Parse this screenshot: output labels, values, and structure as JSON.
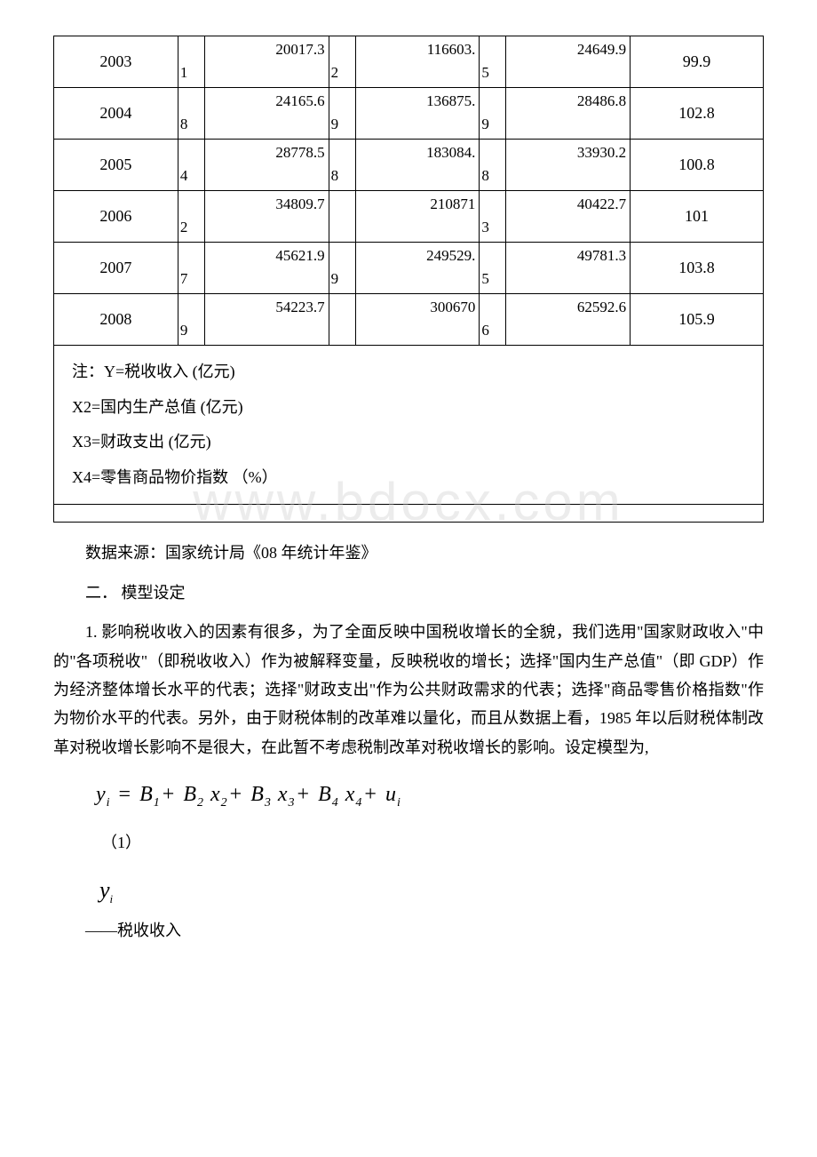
{
  "table": {
    "rows": [
      {
        "year": "2003",
        "y_int": "20017.3",
        "y_frac": "1",
        "x2_int": "116603.",
        "x2_frac": "2",
        "x3_int": "24649.9",
        "x3_frac": "5",
        "x4": "99.9"
      },
      {
        "year": "2004",
        "y_int": "24165.6",
        "y_frac": "8",
        "x2_int": "136875.",
        "x2_frac": "9",
        "x3_int": "28486.8",
        "x3_frac": "9",
        "x4": "102.8"
      },
      {
        "year": "2005",
        "y_int": "28778.5",
        "y_frac": "4",
        "x2_int": "183084.",
        "x2_frac": "8",
        "x3_int": "33930.2",
        "x3_frac": "8",
        "x4": "100.8"
      },
      {
        "year": "2006",
        "y_int": "34809.7",
        "y_frac": "2",
        "x2_int": "210871",
        "x2_frac": "",
        "x3_int": "40422.7",
        "x3_frac": "3",
        "x4": "101"
      },
      {
        "year": "2007",
        "y_int": "45621.9",
        "y_frac": "7",
        "x2_int": "249529.",
        "x2_frac": "9",
        "x3_int": "49781.3",
        "x3_frac": "5",
        "x4": "103.8"
      },
      {
        "year": "2008",
        "y_int": "54223.7",
        "y_frac": "9",
        "x2_int": "300670",
        "x2_frac": "",
        "x3_int": "62592.6",
        "x3_frac": "6",
        "x4": "105.9"
      }
    ],
    "notes": {
      "line1": "注：Y=税收收入 (亿元)",
      "line2": "X2=国内生产总值 (亿元)",
      "line3": "X3=财政支出 (亿元)",
      "line4": "X4=零售商品物价指数 （%）"
    }
  },
  "watermark": "www.bdocx.com",
  "source": "数据来源：国家统计局《08 年统计年鉴》",
  "sectionTitle": "二． 模型设定",
  "paragraph1": "1. 影响税收收入的因素有很多，为了全面反映中国税收增长的全貌，我们选用\"国家财政收入\"中的\"各项税收\"（即税收收入）作为被解释变量，反映税收的增长；选择\"国内生产总值\"（即 GDP）作为经济整体增长水平的代表；选择\"财政支出\"作为公共财政需求的代表；选择\"商品零售价格指数\"作为物价水平的代表。另外，由于财税体制的改革难以量化，而且从数据上看，1985 年以后财税体制改革对税收增长影响不是很大，在此暂不考虑税制改革对税收增长的影响。设定模型为,",
  "equation": {
    "lhs_var": "y",
    "lhs_sub": "i",
    "terms": [
      {
        "coef": "B",
        "coef_sub": "1"
      },
      {
        "coef": "B",
        "coef_sub": "2",
        "var": "x",
        "var_sub": "2"
      },
      {
        "coef": "B",
        "coef_sub": "3",
        "var": "x",
        "var_sub": "3"
      },
      {
        "coef": "B",
        "coef_sub": "4",
        "var": "x",
        "var_sub": "4"
      },
      {
        "coef": "u",
        "coef_sub": "i"
      }
    ]
  },
  "eqNum": "（1）",
  "varSymbol": {
    "var": "y",
    "sub": "i"
  },
  "varDesc": "——税收收入"
}
